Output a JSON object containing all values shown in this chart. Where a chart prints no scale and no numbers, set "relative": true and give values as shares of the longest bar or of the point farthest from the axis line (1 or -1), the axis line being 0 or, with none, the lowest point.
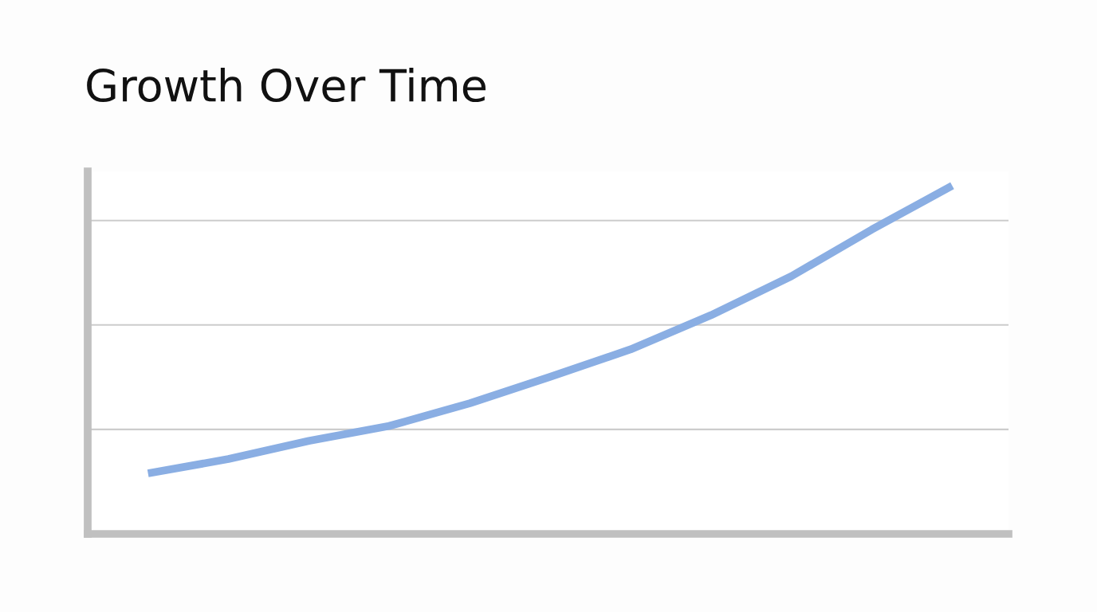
{
  "chart_data": {
    "type": "line",
    "title": "Growth Over Time",
    "relative": true,
    "grid": "y",
    "legend": false,
    "categories": [
      null,
      null,
      null,
      null,
      null,
      null,
      null,
      null,
      null,
      null,
      null
    ],
    "series": [
      {
        "color": "#8aaee3",
        "values": [
          0.174,
          0.215,
          0.267,
          0.31,
          0.375,
          0.451,
          0.53,
          0.628,
          0.74,
          0.874,
          1
        ]
      }
    ]
  }
}
